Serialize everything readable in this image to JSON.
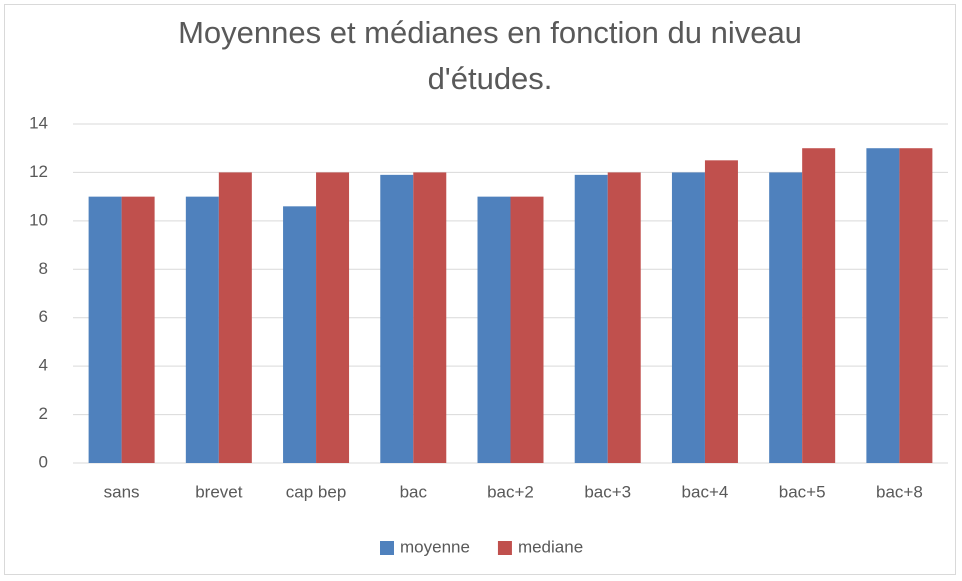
{
  "chart_data": {
    "type": "bar",
    "title": "Moyennes et médianes en fonction du niveau d'études.",
    "categories": [
      "sans",
      "brevet",
      "cap bep",
      "bac",
      "bac+2",
      "bac+3",
      "bac+4",
      "bac+5",
      "bac+8"
    ],
    "series": [
      {
        "name": "moyenne",
        "color": "#4f81bd",
        "values": [
          11,
          11,
          10.6,
          11.9,
          11,
          11.9,
          12,
          12,
          13
        ]
      },
      {
        "name": "mediane",
        "color": "#c0504d",
        "values": [
          11,
          12,
          12,
          12,
          11,
          12,
          12.5,
          13,
          13
        ]
      }
    ],
    "ylim": [
      0,
      14
    ],
    "yticks": [
      0,
      2,
      4,
      6,
      8,
      10,
      12,
      14
    ],
    "grid": true,
    "legend": "bottom"
  }
}
